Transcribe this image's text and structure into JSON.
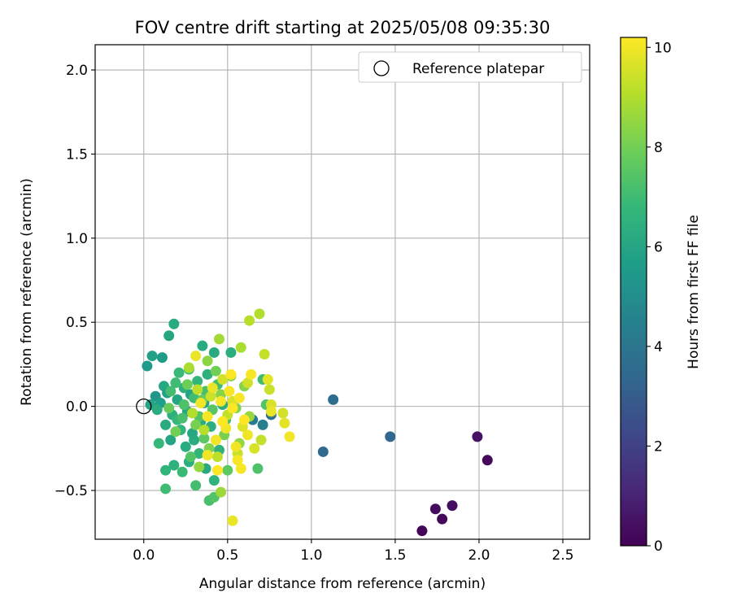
{
  "chart_data": {
    "type": "scatter",
    "title": "FOV centre drift starting at 2025/05/08 09:35:30",
    "xlabel": "Angular distance from reference (arcmin)",
    "ylabel": "Rotation from reference (arcmin)",
    "xlim": [
      -0.29,
      2.66
    ],
    "ylim": [
      -0.79,
      2.15
    ],
    "xticks": [
      0.0,
      0.5,
      1.0,
      1.5,
      2.0,
      2.5
    ],
    "xtick_labels": [
      "0.0",
      "0.5",
      "1.0",
      "1.5",
      "2.0",
      "2.5"
    ],
    "yticks": [
      -0.5,
      0.0,
      0.5,
      1.0,
      1.5,
      2.0
    ],
    "ytick_labels": [
      "−0.5",
      "0.0",
      "0.5",
      "1.0",
      "1.5",
      "2.0"
    ],
    "grid": true,
    "legend": {
      "placement": "top-right",
      "entries": [
        "Reference platepar"
      ]
    },
    "reference_point": {
      "x": 0.0,
      "y": 0.0,
      "label": "Reference platepar"
    },
    "colorbar": {
      "label": "Hours from first FF file",
      "colormap": "viridis",
      "range": [
        0,
        10.2
      ],
      "ticks": [
        0,
        2,
        4,
        6,
        8,
        10
      ],
      "tick_labels": [
        "0",
        "2",
        "4",
        "6",
        "8",
        "10"
      ],
      "colors": [
        "#440154",
        "#482878",
        "#3e4989",
        "#31688e",
        "#26828e",
        "#1f9e89",
        "#35b779",
        "#6ece58",
        "#b5de2b",
        "#fde725"
      ]
    },
    "series": [
      {
        "points": [
          {
            "x": 1.66,
            "y": -0.74,
            "c": 0.1
          },
          {
            "x": 1.74,
            "y": -0.61,
            "c": 0.3
          },
          {
            "x": 1.78,
            "y": -0.67,
            "c": 0.2
          },
          {
            "x": 1.84,
            "y": -0.59,
            "c": 0.4
          },
          {
            "x": 1.99,
            "y": -0.18,
            "c": 0.5
          },
          {
            "x": 2.05,
            "y": -0.32,
            "c": 0.2
          },
          {
            "x": 1.47,
            "y": -0.18,
            "c": 3.4
          },
          {
            "x": 1.13,
            "y": 0.04,
            "c": 3.6
          },
          {
            "x": 1.07,
            "y": -0.27,
            "c": 3.5
          },
          {
            "x": 0.76,
            "y": -0.05,
            "c": 3.8
          },
          {
            "x": 0.65,
            "y": -0.08,
            "c": 4.2
          },
          {
            "x": 0.71,
            "y": -0.11,
            "c": 4.4
          },
          {
            "x": 0.02,
            "y": 0.24,
            "c": 5.5
          },
          {
            "x": 0.05,
            "y": 0.3,
            "c": 5.8
          },
          {
            "x": 0.11,
            "y": 0.29,
            "c": 5.6
          },
          {
            "x": 0.18,
            "y": 0.49,
            "c": 6.2
          },
          {
            "x": 0.15,
            "y": 0.42,
            "c": 6.0
          },
          {
            "x": 0.07,
            "y": 0.06,
            "c": 5.4
          },
          {
            "x": 0.1,
            "y": 0.02,
            "c": 5.7
          },
          {
            "x": 0.04,
            "y": 0.01,
            "c": 5.9
          },
          {
            "x": 0.12,
            "y": 0.12,
            "c": 6.1
          },
          {
            "x": 0.08,
            "y": -0.02,
            "c": 6.3
          },
          {
            "x": 0.14,
            "y": 0.08,
            "c": 5.8
          },
          {
            "x": 0.13,
            "y": -0.11,
            "c": 6.2
          },
          {
            "x": 0.17,
            "y": -0.05,
            "c": 6.4
          },
          {
            "x": 0.2,
            "y": 0.04,
            "c": 6.0
          },
          {
            "x": 0.22,
            "y": -0.14,
            "c": 6.6
          },
          {
            "x": 0.24,
            "y": 0.11,
            "c": 6.5
          },
          {
            "x": 0.26,
            "y": -0.03,
            "c": 6.1
          },
          {
            "x": 0.28,
            "y": 0.07,
            "c": 5.9
          },
          {
            "x": 0.3,
            "y": -0.2,
            "c": 6.3
          },
          {
            "x": 0.32,
            "y": 0.15,
            "c": 6.7
          },
          {
            "x": 0.34,
            "y": -0.09,
            "c": 6.2
          },
          {
            "x": 0.36,
            "y": 0.02,
            "c": 6.0
          },
          {
            "x": 0.38,
            "y": 0.19,
            "c": 6.5
          },
          {
            "x": 0.4,
            "y": -0.12,
            "c": 6.4
          },
          {
            "x": 0.42,
            "y": 0.32,
            "c": 6.2
          },
          {
            "x": 0.35,
            "y": 0.36,
            "c": 6.3
          },
          {
            "x": 0.52,
            "y": 0.32,
            "c": 6.4
          },
          {
            "x": 0.09,
            "y": -0.22,
            "c": 6.8
          },
          {
            "x": 0.13,
            "y": -0.38,
            "c": 6.6
          },
          {
            "x": 0.18,
            "y": -0.35,
            "c": 6.5
          },
          {
            "x": 0.23,
            "y": -0.39,
            "c": 6.9
          },
          {
            "x": 0.13,
            "y": -0.49,
            "c": 7.0
          },
          {
            "x": 0.27,
            "y": -0.33,
            "c": 6.4
          },
          {
            "x": 0.31,
            "y": -0.47,
            "c": 7.1
          },
          {
            "x": 0.42,
            "y": -0.44,
            "c": 6.6
          },
          {
            "x": 0.39,
            "y": -0.56,
            "c": 7.2
          },
          {
            "x": 0.42,
            "y": -0.54,
            "c": 7.4
          },
          {
            "x": 0.16,
            "y": -0.2,
            "c": 6.0
          },
          {
            "x": 0.2,
            "y": -0.08,
            "c": 6.8
          },
          {
            "x": 0.25,
            "y": -0.24,
            "c": 6.3
          },
          {
            "x": 0.29,
            "y": -0.16,
            "c": 6.1
          },
          {
            "x": 0.33,
            "y": -0.28,
            "c": 6.7
          },
          {
            "x": 0.37,
            "y": -0.37,
            "c": 6.2
          },
          {
            "x": 0.45,
            "y": -0.26,
            "c": 6.5
          },
          {
            "x": 0.47,
            "y": 0.01,
            "c": 6.3
          },
          {
            "x": 0.21,
            "y": 0.2,
            "c": 6.9
          },
          {
            "x": 0.19,
            "y": 0.14,
            "c": 7.0
          },
          {
            "x": 0.27,
            "y": 0.22,
            "c": 7.2
          },
          {
            "x": 0.16,
            "y": 0.09,
            "c": 7.1
          },
          {
            "x": 0.24,
            "y": 0.01,
            "c": 7.3
          },
          {
            "x": 0.3,
            "y": 0.05,
            "c": 7.0
          },
          {
            "x": 0.33,
            "y": -0.06,
            "c": 7.4
          },
          {
            "x": 0.37,
            "y": 0.09,
            "c": 7.2
          },
          {
            "x": 0.41,
            "y": -0.02,
            "c": 7.5
          },
          {
            "x": 0.44,
            "y": 0.13,
            "c": 7.1
          },
          {
            "x": 0.49,
            "y": -0.08,
            "c": 7.3
          },
          {
            "x": 0.36,
            "y": -0.19,
            "c": 7.6
          },
          {
            "x": 0.28,
            "y": -0.3,
            "c": 7.4
          },
          {
            "x": 0.23,
            "y": -0.07,
            "c": 7.2
          },
          {
            "x": 0.71,
            "y": 0.16,
            "c": 7.0
          },
          {
            "x": 0.73,
            "y": 0.01,
            "c": 7.4
          },
          {
            "x": 0.68,
            "y": -0.37,
            "c": 7.3
          },
          {
            "x": 0.5,
            "y": -0.38,
            "c": 7.6
          },
          {
            "x": 0.15,
            "y": -0.01,
            "c": 7.8
          },
          {
            "x": 0.19,
            "y": -0.15,
            "c": 8.0
          },
          {
            "x": 0.26,
            "y": 0.13,
            "c": 7.9
          },
          {
            "x": 0.31,
            "y": -0.11,
            "c": 8.1
          },
          {
            "x": 0.35,
            "y": 0.04,
            "c": 7.8
          },
          {
            "x": 0.39,
            "y": -0.25,
            "c": 8.2
          },
          {
            "x": 0.43,
            "y": 0.21,
            "c": 8.0
          },
          {
            "x": 0.46,
            "y": 0.07,
            "c": 8.3
          },
          {
            "x": 0.48,
            "y": -0.17,
            "c": 8.1
          },
          {
            "x": 0.52,
            "y": 0.18,
            "c": 8.4
          },
          {
            "x": 0.55,
            "y": -0.01,
            "c": 8.2
          },
          {
            "x": 0.57,
            "y": -0.22,
            "c": 8.5
          },
          {
            "x": 0.6,
            "y": 0.12,
            "c": 8.3
          },
          {
            "x": 0.63,
            "y": -0.06,
            "c": 8.6
          },
          {
            "x": 0.38,
            "y": 0.27,
            "c": 8.4
          },
          {
            "x": 0.33,
            "y": -0.36,
            "c": 8.5
          },
          {
            "x": 0.46,
            "y": -0.51,
            "c": 8.7
          },
          {
            "x": 0.45,
            "y": 0.4,
            "c": 8.8
          },
          {
            "x": 0.58,
            "y": 0.35,
            "c": 8.9
          },
          {
            "x": 0.63,
            "y": 0.51,
            "c": 9.1
          },
          {
            "x": 0.69,
            "y": 0.55,
            "c": 9.0
          },
          {
            "x": 0.72,
            "y": 0.31,
            "c": 9.3
          },
          {
            "x": 0.27,
            "y": 0.23,
            "c": 8.9
          },
          {
            "x": 0.29,
            "y": -0.04,
            "c": 9.0
          },
          {
            "x": 0.32,
            "y": 0.1,
            "c": 9.2
          },
          {
            "x": 0.36,
            "y": -0.14,
            "c": 9.1
          },
          {
            "x": 0.4,
            "y": 0.06,
            "c": 9.4
          },
          {
            "x": 0.44,
            "y": -0.3,
            "c": 9.2
          },
          {
            "x": 0.47,
            "y": 0.16,
            "c": 9.5
          },
          {
            "x": 0.5,
            "y": -0.05,
            "c": 9.3
          },
          {
            "x": 0.53,
            "y": 0.03,
            "c": 9.6
          },
          {
            "x": 0.56,
            "y": -0.28,
            "c": 9.4
          },
          {
            "x": 0.59,
            "y": -0.12,
            "c": 9.7
          },
          {
            "x": 0.62,
            "y": 0.14,
            "c": 9.5
          },
          {
            "x": 0.66,
            "y": -0.25,
            "c": 9.6
          },
          {
            "x": 0.7,
            "y": -0.2,
            "c": 9.3
          },
          {
            "x": 0.74,
            "y": 0.16,
            "c": 9.8
          },
          {
            "x": 0.75,
            "y": 0.1,
            "c": 9.4
          },
          {
            "x": 0.76,
            "y": 0.01,
            "c": 9.6
          },
          {
            "x": 0.76,
            "y": -0.03,
            "c": 9.9
          },
          {
            "x": 0.83,
            "y": -0.04,
            "c": 9.5
          },
          {
            "x": 0.84,
            "y": -0.1,
            "c": 9.8
          },
          {
            "x": 0.87,
            "y": -0.18,
            "c": 10.0
          },
          {
            "x": 0.53,
            "y": -0.68,
            "c": 9.9
          },
          {
            "x": 0.31,
            "y": 0.3,
            "c": 9.9
          },
          {
            "x": 0.34,
            "y": 0.02,
            "c": 10.0
          },
          {
            "x": 0.38,
            "y": -0.06,
            "c": 10.1
          },
          {
            "x": 0.41,
            "y": 0.11,
            "c": 9.9
          },
          {
            "x": 0.43,
            "y": -0.2,
            "c": 10.0
          },
          {
            "x": 0.46,
            "y": 0.03,
            "c": 10.1
          },
          {
            "x": 0.49,
            "y": -0.13,
            "c": 10.0
          },
          {
            "x": 0.51,
            "y": 0.09,
            "c": 10.1
          },
          {
            "x": 0.53,
            "y": -0.01,
            "c": 10.2
          },
          {
            "x": 0.55,
            "y": -0.24,
            "c": 10.0
          },
          {
            "x": 0.57,
            "y": 0.05,
            "c": 10.1
          },
          {
            "x": 0.6,
            "y": -0.08,
            "c": 10.2
          },
          {
            "x": 0.62,
            "y": -0.17,
            "c": 10.0
          },
          {
            "x": 0.64,
            "y": 0.19,
            "c": 10.1
          },
          {
            "x": 0.58,
            "y": -0.37,
            "c": 10.1
          },
          {
            "x": 0.44,
            "y": -0.38,
            "c": 10.2
          },
          {
            "x": 0.38,
            "y": -0.29,
            "c": 10.0
          },
          {
            "x": 0.52,
            "y": 0.19,
            "c": 10.2
          },
          {
            "x": 0.56,
            "y": -0.32,
            "c": 10.1
          },
          {
            "x": 0.47,
            "y": -0.09,
            "c": 10.2
          }
        ]
      }
    ]
  }
}
